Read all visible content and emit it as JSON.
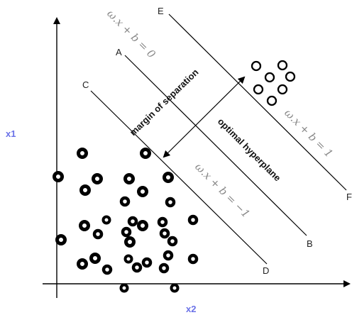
{
  "axes": {
    "y_label": "x1",
    "x_label": "x2",
    "label_color": "#6b72e8"
  },
  "lines": {
    "positive": {
      "start_label": "E",
      "end_label": "F",
      "equation": "ω.x + b = 1"
    },
    "optimal": {
      "start_label": "A",
      "end_label": "B",
      "equation": "ω.x + b = 0"
    },
    "negative": {
      "start_label": "C",
      "end_label": "D",
      "equation": "ω.x + b = −1"
    }
  },
  "annotations": {
    "margin": "margin of separation",
    "hyperplane": "optimal hyperplane"
  },
  "classes": {
    "positive_marker": "hollow circle",
    "negative_marker": "filled ring",
    "equation_color": "#888888",
    "line_color": "#000000"
  }
}
